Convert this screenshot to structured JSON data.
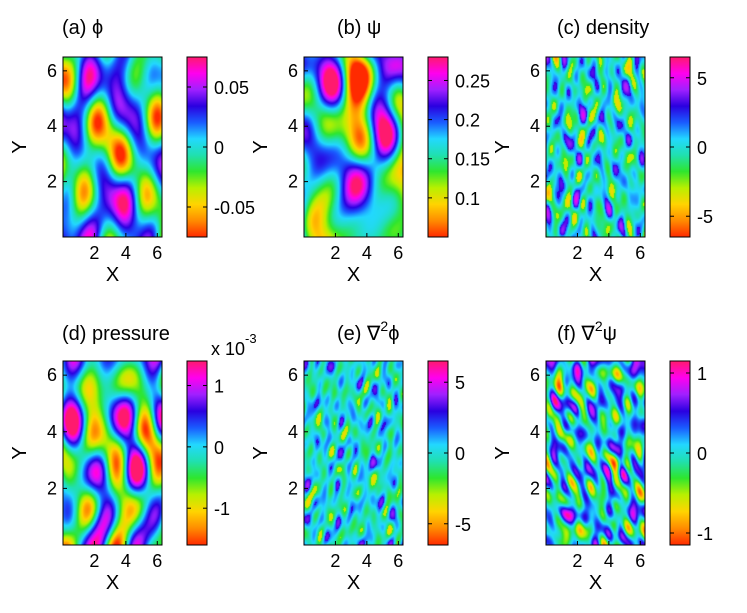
{
  "chart_data": [
    {
      "type": "heatmap",
      "panel": "a",
      "title": "(a) ϕ",
      "xlabel": "X",
      "ylabel": "Y",
      "xlim": [
        0,
        6.3
      ],
      "ylim": [
        0,
        6.5
      ],
      "xticks": [
        2,
        4,
        6
      ],
      "yticks": [
        2,
        4,
        6
      ],
      "colorbar": {
        "min": -0.075,
        "max": 0.075,
        "ticks": [
          0.05,
          0,
          -0.05
        ],
        "tick_labels": [
          "0.05",
          "0",
          "-0.05"
        ],
        "exponent": ""
      },
      "texture": "smooth"
    },
    {
      "type": "heatmap",
      "panel": "b",
      "title": "(b) ψ",
      "xlabel": "X",
      "ylabel": "Y",
      "xlim": [
        0,
        6.3
      ],
      "ylim": [
        0,
        6.5
      ],
      "xticks": [
        2,
        4,
        6
      ],
      "yticks": [
        2,
        4,
        6
      ],
      "colorbar": {
        "min": 0.05,
        "max": 0.28,
        "ticks": [
          0.25,
          0.2,
          0.15,
          0.1
        ],
        "tick_labels": [
          "0.25",
          "0.2",
          "0.15",
          "0.1"
        ],
        "exponent": ""
      },
      "texture": "smooth"
    },
    {
      "type": "heatmap",
      "panel": "c",
      "title": "(c) density",
      "xlabel": "X",
      "ylabel": "Y",
      "xlim": [
        0,
        6.3
      ],
      "ylim": [
        0,
        6.5
      ],
      "xticks": [
        2,
        4,
        6
      ],
      "yticks": [
        2,
        4,
        6
      ],
      "colorbar": {
        "min": -6.5,
        "max": 6.5,
        "ticks": [
          5,
          0,
          -5
        ],
        "tick_labels": [
          "5",
          "0",
          "-5"
        ],
        "exponent": ""
      },
      "texture": "filament"
    },
    {
      "type": "heatmap",
      "panel": "d",
      "title": "(d) pressure",
      "xlabel": "X",
      "ylabel": "Y",
      "xlim": [
        0,
        6.3
      ],
      "ylim": [
        0,
        6.5
      ],
      "xticks": [
        2,
        4,
        6
      ],
      "yticks": [
        2,
        4,
        6
      ],
      "colorbar": {
        "min": -1.6,
        "max": 1.4,
        "ticks": [
          1,
          0,
          -1
        ],
        "tick_labels": [
          "1",
          "0",
          "-1"
        ],
        "exponent_label": "x 10",
        "exponent_power": "-3"
      },
      "texture": "smooth"
    },
    {
      "type": "heatmap",
      "panel": "e",
      "title_prefix": "(e) ∇",
      "title_sup": "2",
      "title_suffix": "ϕ",
      "xlabel": "X",
      "ylabel": "Y",
      "xlim": [
        0,
        6.3
      ],
      "ylim": [
        0,
        6.5
      ],
      "xticks": [
        2,
        4,
        6
      ],
      "yticks": [
        2,
        4,
        6
      ],
      "colorbar": {
        "min": -6.5,
        "max": 6.5,
        "ticks": [
          5,
          0,
          -5
        ],
        "tick_labels": [
          "5",
          "0",
          "-5"
        ],
        "exponent": ""
      },
      "texture": "filament"
    },
    {
      "type": "heatmap",
      "panel": "f",
      "title_prefix": "(f) ∇",
      "title_sup": "2",
      "title_suffix": "ψ",
      "xlabel": "X",
      "ylabel": "Y",
      "xlim": [
        0,
        6.3
      ],
      "ylim": [
        0,
        6.5
      ],
      "xticks": [
        2,
        4,
        6
      ],
      "yticks": [
        2,
        4,
        6
      ],
      "colorbar": {
        "min": -1.15,
        "max": 1.15,
        "ticks": [
          1,
          0,
          -1
        ],
        "tick_labels": [
          "1",
          "0",
          "-1"
        ],
        "exponent": ""
      },
      "texture": "busy"
    }
  ],
  "colormap": [
    "#ff2a00",
    "#ff8c00",
    "#ffd400",
    "#b8f000",
    "#2ee62e",
    "#20e0b0",
    "#22d8ff",
    "#1a5cff",
    "#2a00e0",
    "#a020ff",
    "#ff00ee",
    "#ff1a6e"
  ]
}
